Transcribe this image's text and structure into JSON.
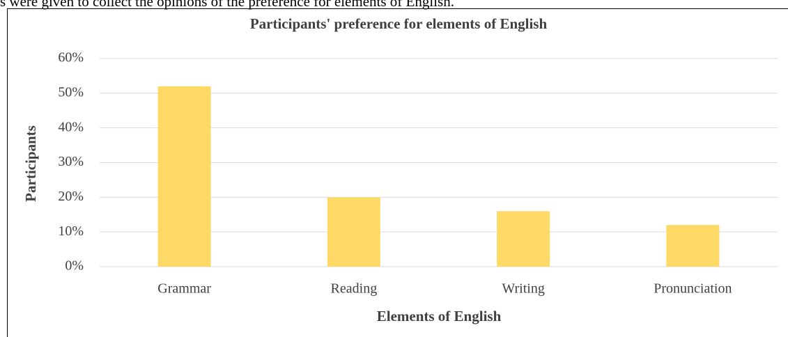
{
  "header_text": "s were given to collect the opinions of the preference for elements of English.",
  "chart_data": {
    "type": "bar",
    "title": "Participants' preference for elements of English",
    "x_label": "Elements of English",
    "y_label": "Participants",
    "categories": [
      "Grammar",
      "Reading",
      "Writing",
      "Pronunciation"
    ],
    "values": [
      52,
      20,
      16,
      12
    ],
    "color": "#ffd966",
    "ylim": [
      0,
      60
    ],
    "yticks": [
      {
        "value": 0,
        "label": "0%"
      },
      {
        "value": 10,
        "label": "10%"
      },
      {
        "value": 20,
        "label": "20%"
      },
      {
        "value": 30,
        "label": "30%"
      },
      {
        "value": 40,
        "label": "40%"
      },
      {
        "value": 50,
        "label": "50%"
      },
      {
        "value": 60,
        "label": "60%"
      }
    ],
    "grid": true
  }
}
